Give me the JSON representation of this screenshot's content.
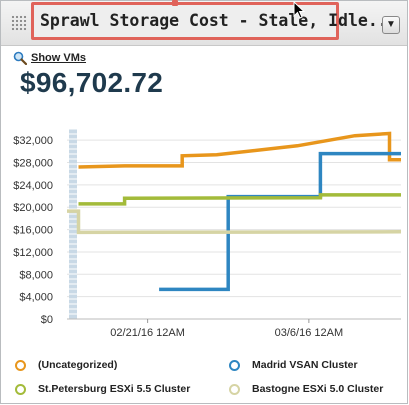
{
  "widget": {
    "title": "Sprawl Storage Cost - Stale, Idle...",
    "menu_icon": "dropdown-triangle-icon",
    "show_vms_label": "Show VMs",
    "total_cost": "$96,702.72"
  },
  "chart_data": {
    "type": "line",
    "title": "",
    "xlabel": "",
    "ylabel": "",
    "x_tick_labels": [
      "02/21/16 12AM",
      "03/6/16 12AM"
    ],
    "y_tick_labels": [
      "$32,000",
      "$28,000",
      "$24,000",
      "$20,000",
      "$16,000",
      "$12,000",
      "$8,000",
      "$4,000",
      "$0"
    ],
    "ylim": [
      0,
      34000
    ],
    "x_range_days": [
      "2016-02-14",
      "2016-03-14"
    ],
    "grid": true,
    "legend_position": "bottom",
    "series": [
      {
        "name": "(Uncategorized)",
        "color": "#e8961c",
        "points": [
          {
            "x": "2016-02-15",
            "y": 27200
          },
          {
            "x": "2016-02-19",
            "y": 27400
          },
          {
            "x": "2016-02-24",
            "y": 27400
          },
          {
            "x": "2016-02-24",
            "y": 29200
          },
          {
            "x": "2016-02-27",
            "y": 29400
          },
          {
            "x": "2016-03-05",
            "y": 31000
          },
          {
            "x": "2016-03-10",
            "y": 32800
          },
          {
            "x": "2016-03-13",
            "y": 33200
          },
          {
            "x": "2016-03-13",
            "y": 28500
          },
          {
            "x": "2016-03-14",
            "y": 28500
          }
        ]
      },
      {
        "name": "Madrid VSAN Cluster",
        "color": "#2e86c1",
        "points": [
          {
            "x": "2016-02-22",
            "y": 5300
          },
          {
            "x": "2016-02-28",
            "y": 5300
          },
          {
            "x": "2016-02-28",
            "y": 21900
          },
          {
            "x": "2016-03-07",
            "y": 21900
          },
          {
            "x": "2016-03-07",
            "y": 29600
          },
          {
            "x": "2016-03-14",
            "y": 29600
          }
        ]
      },
      {
        "name": "St.Petersburg ESXi 5.5 Cluster",
        "color": "#a3bb3a",
        "points": [
          {
            "x": "2016-02-15",
            "y": 20600
          },
          {
            "x": "2016-02-19",
            "y": 20600
          },
          {
            "x": "2016-02-19",
            "y": 21600
          },
          {
            "x": "2016-03-07",
            "y": 21700
          },
          {
            "x": "2016-03-07",
            "y": 22200
          },
          {
            "x": "2016-03-14",
            "y": 22200
          }
        ]
      },
      {
        "name": "Bastogne ESXi 5.0 Cluster",
        "color": "#d6d4a4",
        "points": [
          {
            "x": "2016-02-14",
            "y": 19300
          },
          {
            "x": "2016-02-15",
            "y": 19300
          },
          {
            "x": "2016-02-15",
            "y": 15500
          },
          {
            "x": "2016-03-14",
            "y": 15600
          }
        ]
      }
    ]
  }
}
